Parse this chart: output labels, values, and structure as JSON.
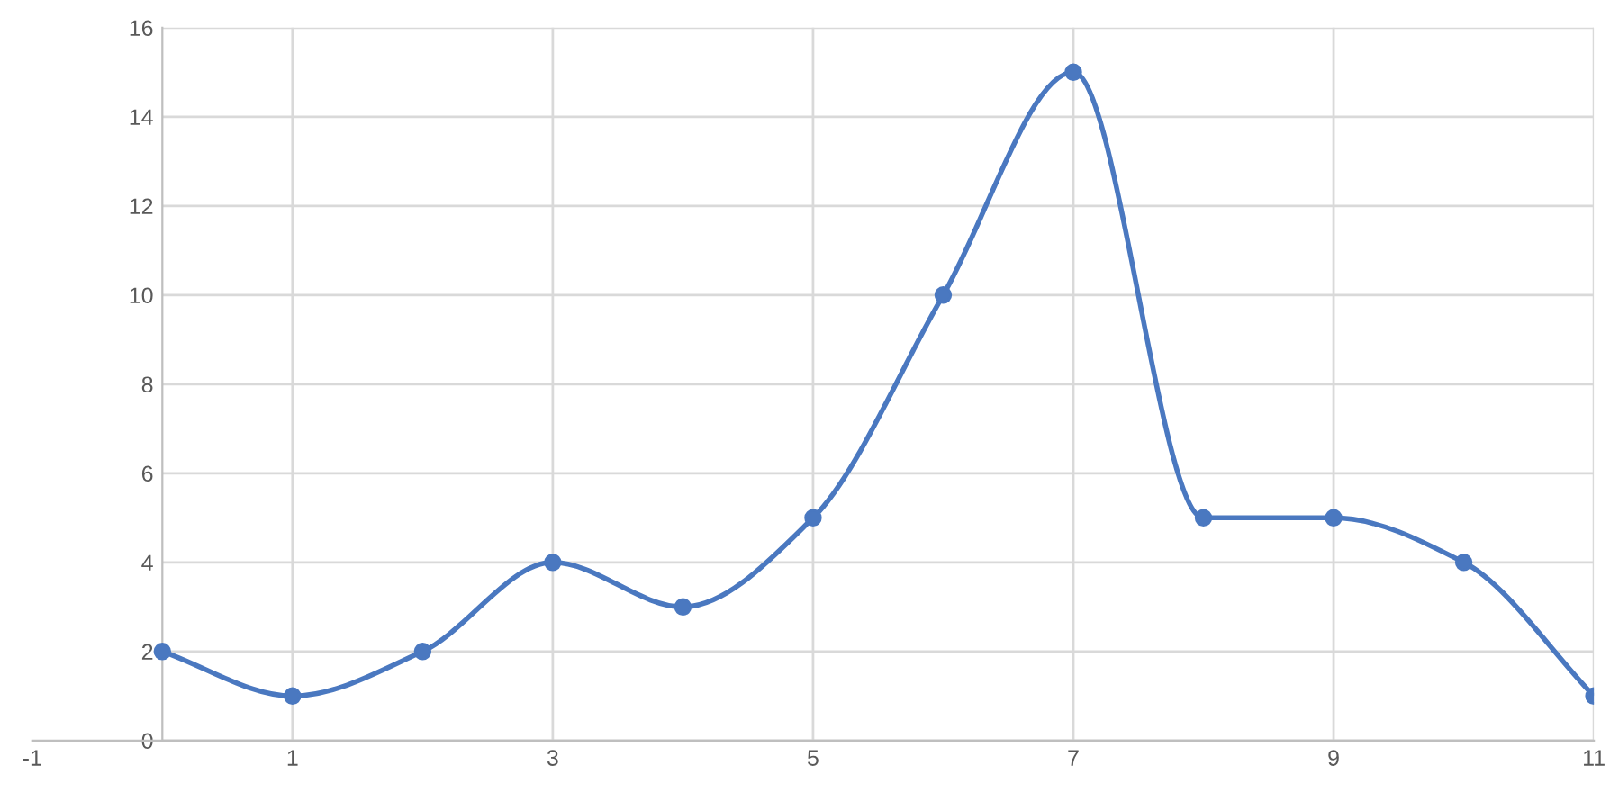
{
  "chart_data": {
    "type": "line",
    "x": [
      0,
      1,
      2,
      3,
      4,
      5,
      6,
      7,
      8,
      9,
      10,
      11
    ],
    "series": [
      {
        "color": "#4a78c0",
        "values": [
          2,
          1,
          2,
          4,
          3,
          5,
          10,
          15,
          5,
          5,
          4,
          1
        ]
      }
    ],
    "xlim": [
      -1,
      11
    ],
    "xticks": [
      -1,
      1,
      3,
      5,
      7,
      9,
      11
    ],
    "ylim": [
      0,
      16
    ],
    "yticks": [
      0,
      2,
      4,
      6,
      8,
      10,
      12,
      14,
      16
    ],
    "grid": true,
    "marker": "circle",
    "line_style": "solid"
  }
}
